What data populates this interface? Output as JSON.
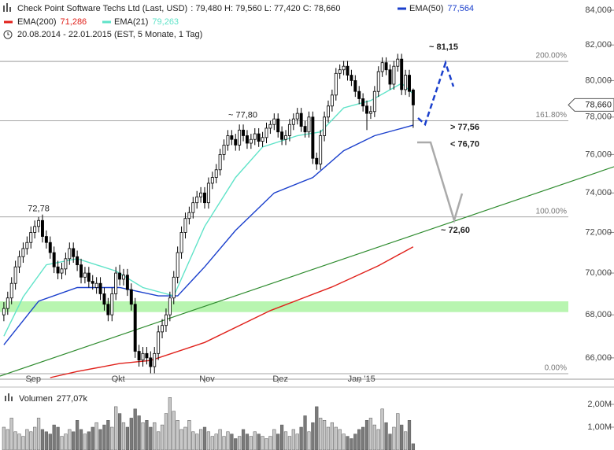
{
  "chart_data": [
    {
      "type": "candlestick",
      "title": "Check Point Software Techs Ltd (Last, USD)",
      "ohlc_label": ": 79,480  H: 79,560  L: 77,420  C: 78,660",
      "period": "20.08.2014 - 22.01.2015 (EST, 5 Monate, 1 Tag)",
      "log_scale": true,
      "xlim": [
        -1,
        158
      ],
      "ylim": [
        65.03,
        84.6
      ],
      "yticks": [
        {
          "value": 84,
          "label": "84,000"
        },
        {
          "value": 82,
          "label": "82,000"
        },
        {
          "value": 80,
          "label": "80,000"
        },
        {
          "value": 78,
          "label": "78,000"
        },
        {
          "value": 76,
          "label": "76,000"
        },
        {
          "value": 74,
          "label": "74,000"
        },
        {
          "value": 72,
          "label": "72,000"
        },
        {
          "value": 70,
          "label": "70,000"
        },
        {
          "value": 68,
          "label": "68,000"
        },
        {
          "value": 66,
          "label": "66,000"
        }
      ],
      "xticks": [
        {
          "value": 7,
          "label": "Sep"
        },
        {
          "value": 29,
          "label": "Okt"
        },
        {
          "value": 52,
          "label": "Nov"
        },
        {
          "value": 71,
          "label": "Dez"
        },
        {
          "value": 92,
          "label": "Jan '15"
        }
      ],
      "up_color": "#ffffff",
      "down_color": "#000000",
      "candles": [
        [
          68.0,
          68.6,
          67.7,
          68.3
        ],
        [
          68.3,
          69.1,
          68.0,
          68.8
        ],
        [
          68.8,
          69.8,
          68.5,
          69.5
        ],
        [
          69.5,
          70.6,
          69.2,
          70.3
        ],
        [
          70.3,
          71.1,
          70.0,
          70.8
        ],
        [
          70.8,
          71.5,
          70.5,
          71.2
        ],
        [
          71.2,
          71.8,
          70.9,
          71.5
        ],
        [
          71.5,
          72.3,
          71.2,
          72.0
        ],
        [
          72.0,
          72.6,
          71.7,
          72.3
        ],
        [
          72.3,
          72.78,
          72.0,
          72.6
        ],
        [
          72.6,
          72.9,
          71.5,
          71.8
        ],
        [
          71.8,
          72.1,
          71.2,
          71.5
        ],
        [
          71.5,
          71.8,
          70.7,
          71.0
        ],
        [
          71.0,
          71.3,
          70.0,
          70.3
        ],
        [
          70.3,
          70.6,
          69.7,
          70.0
        ],
        [
          70.0,
          70.5,
          69.7,
          70.2
        ],
        [
          70.2,
          71.0,
          69.9,
          70.7
        ],
        [
          70.7,
          71.5,
          70.4,
          71.2
        ],
        [
          71.2,
          71.5,
          70.5,
          70.8
        ],
        [
          70.8,
          71.1,
          70.1,
          70.4
        ],
        [
          70.4,
          70.7,
          69.5,
          69.8
        ],
        [
          69.8,
          70.3,
          69.5,
          70.0
        ],
        [
          70.0,
          70.3,
          69.3,
          69.6
        ],
        [
          69.6,
          69.9,
          69.2,
          69.5
        ],
        [
          69.3,
          69.8,
          69.0,
          69.5
        ],
        [
          69.5,
          69.8,
          68.7,
          69.0
        ],
        [
          69.0,
          69.3,
          68.2,
          68.5
        ],
        [
          68.5,
          68.8,
          67.7,
          68.0
        ],
        [
          68.0,
          69.3,
          67.7,
          69.0
        ],
        [
          69.0,
          70.3,
          68.7,
          70.0
        ],
        [
          70.0,
          70.4,
          69.4,
          69.7
        ],
        [
          69.7,
          70.2,
          69.4,
          69.9
        ],
        [
          69.9,
          70.2,
          68.9,
          69.2
        ],
        [
          69.2,
          69.5,
          68.2,
          68.5
        ],
        [
          68.5,
          68.8,
          66.0,
          66.3
        ],
        [
          66.3,
          66.6,
          65.6,
          65.9
        ],
        [
          65.9,
          66.5,
          65.6,
          66.2
        ],
        [
          66.2,
          66.5,
          65.7,
          66.0
        ],
        [
          66.0,
          66.3,
          65.3,
          65.6
        ],
        [
          65.6,
          66.5,
          65.3,
          66.2
        ],
        [
          66.2,
          67.5,
          65.9,
          67.2
        ],
        [
          67.2,
          67.8,
          66.9,
          67.5
        ],
        [
          67.5,
          68.3,
          67.2,
          68.0
        ],
        [
          68.0,
          69.1,
          67.7,
          68.8
        ],
        [
          68.8,
          70.1,
          68.5,
          69.8
        ],
        [
          69.8,
          71.3,
          69.5,
          71.0
        ],
        [
          71.0,
          72.3,
          70.7,
          72.0
        ],
        [
          72.0,
          73.0,
          71.7,
          72.7
        ],
        [
          72.7,
          73.3,
          72.4,
          73.0
        ],
        [
          73.0,
          73.8,
          72.7,
          73.5
        ],
        [
          73.5,
          74.1,
          73.2,
          73.8
        ],
        [
          73.8,
          74.3,
          73.5,
          74.0
        ],
        [
          74.0,
          74.3,
          73.2,
          73.5
        ],
        [
          73.5,
          74.8,
          73.2,
          74.5
        ],
        [
          74.5,
          75.1,
          74.2,
          74.8
        ],
        [
          74.8,
          75.5,
          74.5,
          75.2
        ],
        [
          75.2,
          76.3,
          74.9,
          76.0
        ],
        [
          76.0,
          76.8,
          75.7,
          76.5
        ],
        [
          76.5,
          77.3,
          76.2,
          77.0
        ],
        [
          77.0,
          77.3,
          76.5,
          76.8
        ],
        [
          76.8,
          77.1,
          76.2,
          76.5
        ],
        [
          76.5,
          77.6,
          76.2,
          77.3
        ],
        [
          77.3,
          77.6,
          76.7,
          77.0
        ],
        [
          77.0,
          77.3,
          76.3,
          76.6
        ],
        [
          76.6,
          77.1,
          76.3,
          76.8
        ],
        [
          76.8,
          77.4,
          76.5,
          77.1
        ],
        [
          77.1,
          77.4,
          76.4,
          76.7
        ],
        [
          76.7,
          77.2,
          76.4,
          76.9
        ],
        [
          76.9,
          77.7,
          76.6,
          77.4
        ],
        [
          77.4,
          77.8,
          77.1,
          77.6
        ],
        [
          77.6,
          78.2,
          77.3,
          77.9
        ],
        [
          77.9,
          78.2,
          76.9,
          77.2
        ],
        [
          77.2,
          77.5,
          76.5,
          76.8
        ],
        [
          76.8,
          77.3,
          76.5,
          77.0
        ],
        [
          77.0,
          77.9,
          76.7,
          77.6
        ],
        [
          77.6,
          78.2,
          77.3,
          77.9
        ],
        [
          77.9,
          78.5,
          77.6,
          78.2
        ],
        [
          78.2,
          78.5,
          77.2,
          77.5
        ],
        [
          77.5,
          77.8,
          76.9,
          77.2
        ],
        [
          77.2,
          78.3,
          76.9,
          78.0
        ],
        [
          78.0,
          78.3,
          75.5,
          75.8
        ],
        [
          75.8,
          76.1,
          75.2,
          75.5
        ],
        [
          75.5,
          77.3,
          75.2,
          77.0
        ],
        [
          77.0,
          78.3,
          76.7,
          78.0
        ],
        [
          78.0,
          78.9,
          77.7,
          78.6
        ],
        [
          78.6,
          79.5,
          78.3,
          79.2
        ],
        [
          79.2,
          80.7,
          78.9,
          80.4
        ],
        [
          80.4,
          80.9,
          80.1,
          80.6
        ],
        [
          80.6,
          81.1,
          80.3,
          80.8
        ],
        [
          80.8,
          81.1,
          80.0,
          80.3
        ],
        [
          80.3,
          80.6,
          79.7,
          80.0
        ],
        [
          80.0,
          80.3,
          79.1,
          79.4
        ],
        [
          79.4,
          79.7,
          78.7,
          79.0
        ],
        [
          79.0,
          79.3,
          78.3,
          78.6
        ],
        [
          78.6,
          78.9,
          77.3,
          78.2
        ],
        [
          78.2,
          78.6,
          77.9,
          78.3
        ],
        [
          78.3,
          79.7,
          78.0,
          79.4
        ],
        [
          79.4,
          80.8,
          79.1,
          80.5
        ],
        [
          80.5,
          81.3,
          80.2,
          81.0
        ],
        [
          81.0,
          81.3,
          80.3,
          80.6
        ],
        [
          80.6,
          80.9,
          79.5,
          79.8
        ],
        [
          79.8,
          81.1,
          79.5,
          80.8
        ],
        [
          80.8,
          81.5,
          80.5,
          81.2
        ],
        [
          81.2,
          81.5,
          79.2,
          79.5
        ],
        [
          79.5,
          80.6,
          79.2,
          80.3
        ],
        [
          80.3,
          80.6,
          79.1,
          79.4
        ],
        [
          79.48,
          79.56,
          77.42,
          78.66
        ]
      ],
      "high_label": {
        "index": 9,
        "label": "72,78"
      },
      "series": [
        {
          "name": "EMA(50)",
          "last_label": "77,564",
          "color": "#1a3fcc",
          "x": [
            0,
            9,
            19,
            30,
            40,
            45,
            52,
            60,
            70,
            80,
            88,
            96,
            106
          ],
          "values": [
            66.6,
            68.65,
            69.3,
            69.3,
            68.9,
            68.9,
            70.3,
            72.1,
            74.0,
            74.8,
            76.2,
            77.0,
            77.564
          ]
        },
        {
          "name": "EMA(200)",
          "last_label": "71,286",
          "color": "#e0201a",
          "x": [
            12,
            19,
            30,
            38,
            52,
            69,
            85,
            97,
            106
          ],
          "values": [
            65.1,
            65.38,
            65.74,
            65.88,
            66.71,
            68.2,
            69.33,
            70.36,
            71.286
          ]
        },
        {
          "name": "EMA(21)",
          "last_label": "79,263",
          "color": "#5fe3c8",
          "x": [
            0,
            5,
            11,
            19,
            29,
            36,
            44,
            52,
            60,
            67,
            76,
            82,
            88,
            95,
            103,
            106
          ],
          "values": [
            67.0,
            68.85,
            70.4,
            70.7,
            70.1,
            69.3,
            68.9,
            72.3,
            74.8,
            76.4,
            77.0,
            77.2,
            78.5,
            78.9,
            79.85,
            79.263
          ]
        }
      ],
      "last_price": {
        "value": 78.66,
        "label": "78,660"
      },
      "fib_levels": [
        {
          "value": 81.07,
          "label": "200.00%"
        },
        {
          "value": 77.8,
          "label": "161.80%"
        },
        {
          "value": 72.78,
          "label": "100.00%"
        },
        {
          "value": 65.28,
          "label": "0.00%"
        }
      ],
      "support_band": [
        68.13,
        68.64
      ],
      "support_color": "#b8f5b0",
      "trendline": {
        "x": [
          -1,
          158
        ],
        "y": [
          65.17,
          75.36
        ],
        "color": "#2e8b2e"
      },
      "annotations": [
        {
          "text": "~ 77,80",
          "value": 77.8,
          "color": "#999999"
        },
        {
          "text": "~ 81,15",
          "value": 81.15,
          "color": "#1a3fcc"
        },
        {
          "text": "> 77,56",
          "value": 77.56,
          "color": "#1a3fcc"
        },
        {
          "text": "< 76,70",
          "value": 76.7,
          "color": "#999999"
        },
        {
          "text": "~ 72,60",
          "value": 72.6,
          "color": "#999999"
        }
      ]
    },
    {
      "type": "bar",
      "label": "Volumen",
      "last_label": "277,07k",
      "ylim": [
        0,
        2.69
      ],
      "yticks": [
        {
          "value": 2,
          "label": "2,00M"
        },
        {
          "value": 1,
          "label": "1,00M"
        }
      ],
      "up_color": "#c8c8c8",
      "down_color": "#7a7a7a",
      "values": [
        1.0,
        0.9,
        1.4,
        0.8,
        0.7,
        0.6,
        0.9,
        0.8,
        1.0,
        1.4,
        0.9,
        0.8,
        0.7,
        1.1,
        1.0,
        0.6,
        0.7,
        0.9,
        0.8,
        1.3,
        0.9,
        0.7,
        0.8,
        1.0,
        1.2,
        0.9,
        1.1,
        1.3,
        1.0,
        1.9,
        1.6,
        1.2,
        1.0,
        1.4,
        1.8,
        1.5,
        1.2,
        1.3,
        1.0,
        1.2,
        0.8,
        1.1,
        1.6,
        2.3,
        1.7,
        1.3,
        0.9,
        1.0,
        1.3,
        0.8,
        0.7,
        0.9,
        1.0,
        0.8,
        0.6,
        0.7,
        0.9,
        0.6,
        0.8,
        0.7,
        0.5,
        0.6,
        0.9,
        0.7,
        0.6,
        0.8,
        0.7,
        0.6,
        0.5,
        0.6,
        0.9,
        0.7,
        1.1,
        0.8,
        0.6,
        0.9,
        0.7,
        1.0,
        1.5,
        0.8,
        1.2,
        1.9,
        1.4,
        1.3,
        1.0,
        1.2,
        1.0,
        0.9,
        0.7,
        0.6,
        0.5,
        0.7,
        0.9,
        1.0,
        1.3,
        1.4,
        1.1,
        0.9,
        1.8,
        1.2,
        0.7,
        1.0,
        1.6,
        1.1,
        0.8,
        1.3,
        0.27707
      ]
    }
  ]
}
